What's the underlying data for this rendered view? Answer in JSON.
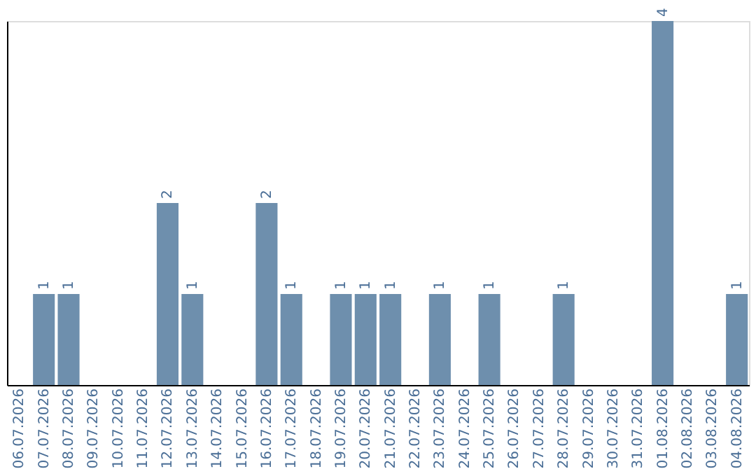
{
  "chart_data": {
    "type": "bar",
    "categories": [
      "06.07.2026",
      "07.07.2026",
      "08.07.2026",
      "09.07.2026",
      "10.07.2026",
      "11.07.2026",
      "12.07.2026",
      "13.07.2026",
      "14.07.2026",
      "15.07.2026",
      "16.07.2026",
      "17.07.2026",
      "18.07.2026",
      "19.07.2026",
      "20.07.2026",
      "21.07.2026",
      "22.07.2026",
      "23.07.2026",
      "24.07.2026",
      "25.07.2026",
      "26.07.2026",
      "27.07.2026",
      "28.07.2026",
      "29.07.2026",
      "30.07.2026",
      "31.07.2026",
      "01.08.2026",
      "02.08.2026",
      "03.08.2026",
      "04.08.2026"
    ],
    "values": [
      0,
      1,
      1,
      0,
      0,
      0,
      2,
      1,
      0,
      0,
      2,
      1,
      0,
      1,
      1,
      1,
      0,
      1,
      0,
      1,
      0,
      0,
      1,
      0,
      0,
      0,
      4,
      0,
      0,
      1
    ],
    "value_labels": [
      null,
      "1",
      "1",
      null,
      null,
      null,
      "2",
      "1",
      null,
      null,
      "2",
      "1",
      null,
      "1",
      "1",
      "1",
      null,
      "1",
      null,
      "1",
      null,
      null,
      "1",
      null,
      null,
      null,
      "4",
      null,
      null,
      "1"
    ],
    "color": "#6e8fad",
    "ylim": [
      0,
      4
    ],
    "tick_labels": "x",
    "grid": false
  }
}
